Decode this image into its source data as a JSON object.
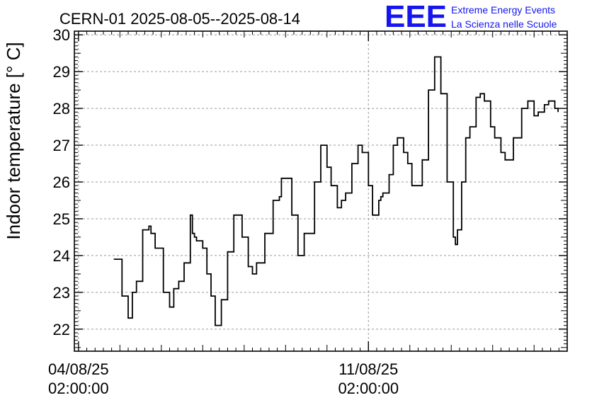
{
  "chart_data": {
    "type": "line",
    "title": "CERN-01 2025-08-05--2025-08-14",
    "ylabel": "Indoor temperature [° C]",
    "xlabel": "",
    "ylim": [
      21.4,
      30.1
    ],
    "y_ticks": [
      22,
      23,
      24,
      25,
      26,
      27,
      28,
      29,
      30
    ],
    "x_ticks": [
      {
        "line1": "04/08/25",
        "line2": "02:00:00",
        "day": 0
      },
      {
        "line1": "11/08/25",
        "line2": "02:00:00",
        "day": 7
      }
    ],
    "xlim_days": [
      -0.1,
      11.8
    ],
    "grid": true,
    "series": [
      {
        "x_days": [
          0.85,
          1.05,
          1.2,
          1.3,
          1.4,
          1.55,
          1.7,
          1.75,
          1.85,
          2.05,
          2.2,
          2.3,
          2.42,
          2.55,
          2.7,
          2.75,
          2.8,
          2.85,
          3.0,
          3.1,
          3.2,
          3.3,
          3.45,
          3.6,
          3.75,
          3.95,
          4.1,
          4.2,
          4.3,
          4.5,
          4.7,
          4.85,
          4.9,
          4.95,
          5.15,
          5.3,
          5.45,
          5.7,
          5.85,
          6.0,
          6.1,
          6.25,
          6.35,
          6.45,
          6.6,
          6.75,
          6.85,
          7.0,
          7.1,
          7.25,
          7.3,
          7.35,
          7.5,
          7.6,
          7.7,
          7.85,
          7.95,
          8.05,
          8.15,
          8.3,
          8.45,
          8.6,
          8.75,
          8.9,
          9.05,
          9.1,
          9.15,
          9.25,
          9.35,
          9.45,
          9.6,
          9.7,
          9.8,
          9.95,
          10.05,
          10.2,
          10.3,
          10.5,
          10.7,
          10.85,
          11.0,
          11.1,
          11.25,
          11.35,
          11.5,
          11.58
        ],
        "y": [
          23.9,
          22.9,
          22.3,
          23.0,
          23.3,
          24.7,
          24.8,
          24.6,
          24.2,
          23.0,
          22.6,
          23.1,
          23.3,
          23.8,
          25.1,
          24.6,
          24.5,
          24.4,
          24.2,
          23.5,
          22.9,
          22.1,
          22.8,
          24.1,
          25.1,
          24.5,
          23.7,
          23.5,
          23.8,
          24.6,
          25.5,
          25.6,
          26.1,
          26.1,
          25.1,
          24.0,
          24.6,
          26.0,
          27.0,
          26.4,
          25.9,
          25.3,
          25.5,
          25.7,
          26.5,
          27.0,
          26.8,
          25.9,
          25.1,
          25.5,
          25.6,
          25.7,
          26.2,
          27.0,
          27.2,
          26.8,
          26.5,
          25.9,
          25.9,
          26.6,
          28.5,
          29.4,
          28.4,
          26.0,
          24.5,
          24.3,
          24.7,
          26.0,
          27.2,
          27.5,
          28.3,
          28.4,
          28.2,
          27.5,
          27.2,
          26.8,
          26.6,
          27.2,
          28.0,
          28.2,
          27.8,
          27.9,
          28.1,
          28.2,
          28.0,
          27.9
        ]
      }
    ]
  },
  "logo": {
    "mark": "EEE",
    "line1": "Extreme Energy Events",
    "line2": "La Scienza nelle Scuole"
  }
}
